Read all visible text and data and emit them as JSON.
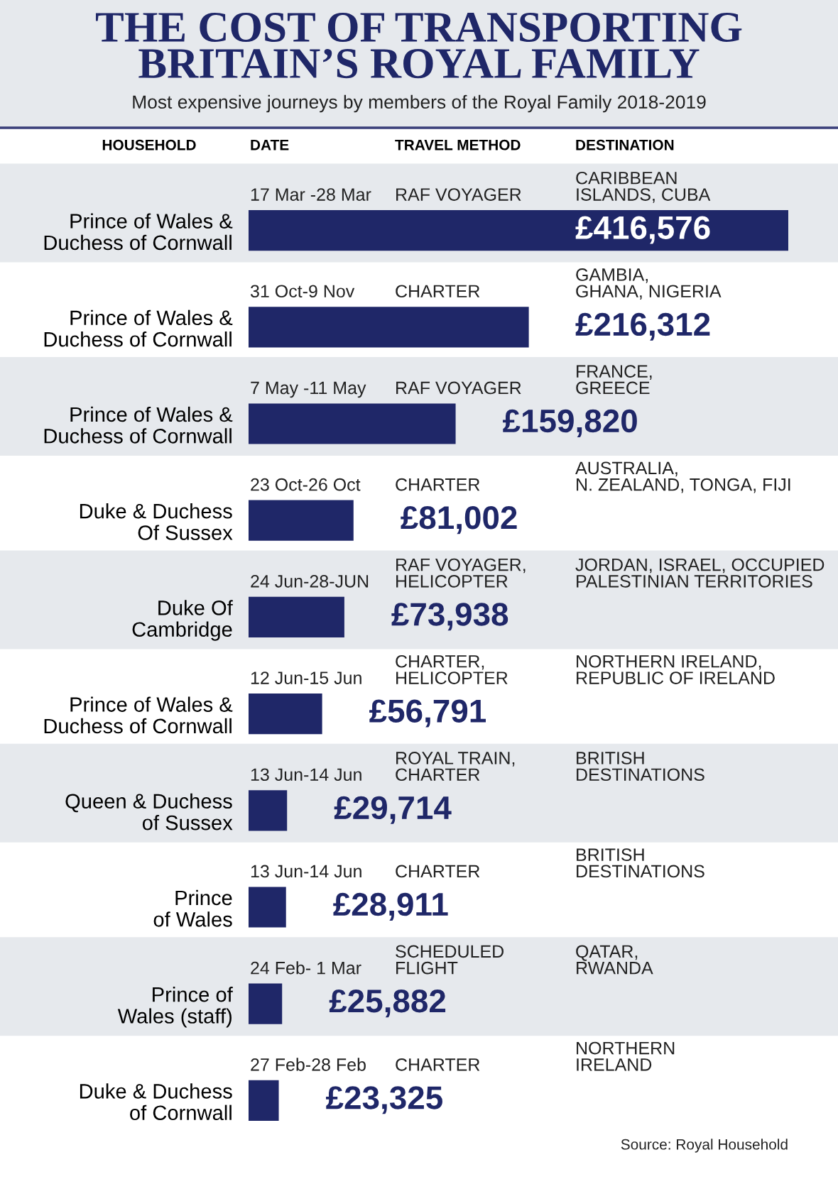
{
  "chart_data": {
    "type": "bar",
    "orientation": "horizontal",
    "title": "THE COST OF TRANSPORTING\nBRITAIN’S ROYAL FAMILY",
    "subtitle": "Most expensive journeys by members of the Royal Family 2018-2019",
    "ylabel": "HOUSEHOLD",
    "categories": [
      "Prince of Wales &\nDuchess of Cornwall",
      "Prince of Wales &\nDuchess of Cornwall",
      "Prince of Wales &\nDuchess of Cornwall",
      "Duke & Duchess\nOf Sussex",
      "Duke Of\nCambridge",
      "Prince of Wales &\nDuchess of Cornwall",
      "Queen & Duchess\nof Sussex",
      "Prince\nof Wales",
      "Prince of\nWales (staff)",
      "Duke & Duchess\nof Cornwall"
    ],
    "values": [
      416576,
      216312,
      159820,
      81002,
      73938,
      56791,
      29714,
      28911,
      25882,
      23325
    ],
    "value_labels": [
      "£416,576",
      "£216,312",
      "£159,820",
      "£81,002",
      "£73,938",
      "£56,791",
      "£29,714",
      "£28,911",
      "£25,882",
      "£23,325"
    ],
    "color": "#1f2768",
    "tick_labels": "y",
    "annotations": [
      "DATE",
      "TRAVEL METHOD",
      "DESTINATION",
      "17 Mar -28 Mar",
      "RAF VOYAGER",
      "CARIBBEAN\nISLANDS, CUBA",
      "31 Oct-9 Nov",
      "CHARTER",
      "GAMBIA,\nGHANA, NIGERIA",
      "7 May -11 May",
      "RAF VOYAGER",
      "FRANCE,\nGREECE",
      "23 Oct-26 Oct",
      "CHARTER",
      "AUSTRALIA,\nN. ZEALAND, TONGA, FIJI",
      "24 Jun-28-JUN",
      "RAF VOYAGER,\nHELICOPTER",
      "JORDAN, ISRAEL, OCCUPIED\nPALESTINIAN TERRITORIES",
      "12 Jun-15 Jun",
      "CHARTER,\nHELICOPTER",
      "NORTHERN IRELAND,\nREPUBLIC OF IRELAND",
      "13 Jun-14 Jun",
      "ROYAL TRAIN,\nCHARTER",
      "BRITISH\nDESTINATIONS",
      "13 Jun-14 Jun",
      "CHARTER",
      "BRITISH\nDESTINATIONS",
      "24 Feb- 1 Mar",
      "SCHEDULED\nFLIGHT",
      "QATAR,\nRWANDA",
      "27 Feb-28 Feb",
      "CHARTER",
      "NORTHERN\nIRELAND",
      "Source: Royal Household"
    ]
  }
}
